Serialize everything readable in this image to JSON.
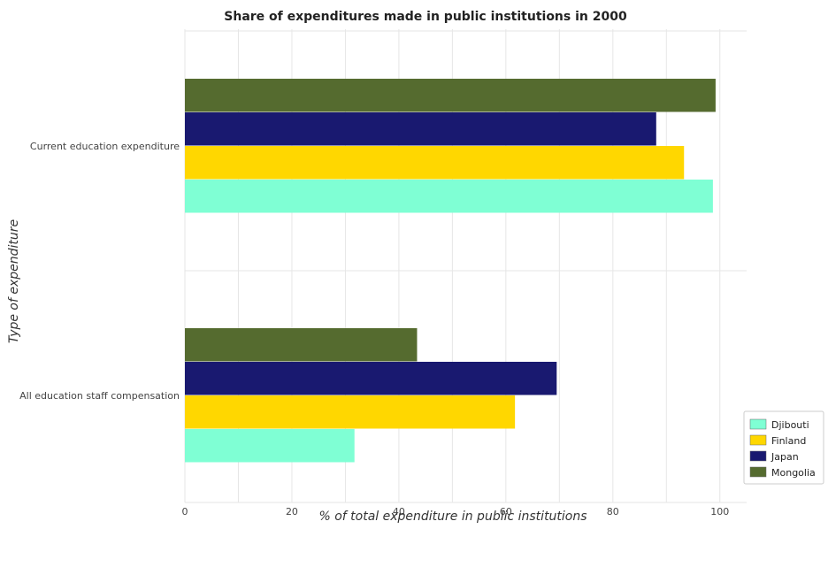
{
  "chart_data": {
    "type": "bar",
    "orientation": "horizontal",
    "title": "Share of expenditures made in public institutions in 2000",
    "xlabel": "% of total expenditure in public institutions",
    "ylabel": "Type of expenditure",
    "xlim": [
      0,
      105
    ],
    "x_ticks": [
      0,
      20,
      40,
      60,
      80,
      100
    ],
    "grid": true,
    "legend_position": "bottom-right",
    "categories": [
      "All education staff compensation",
      "Current education expenditure"
    ],
    "series": [
      {
        "name": "Djibouti",
        "color": "#7fffd4",
        "values": [
          31.7,
          98.7
        ]
      },
      {
        "name": "Finland",
        "color": "#ffd700",
        "values": [
          61.7,
          93.3
        ]
      },
      {
        "name": "Japan",
        "color": "#191970",
        "values": [
          69.5,
          88.1
        ]
      },
      {
        "name": "Mongolia",
        "color": "#556b2f",
        "values": [
          43.4,
          99.2
        ]
      }
    ]
  }
}
